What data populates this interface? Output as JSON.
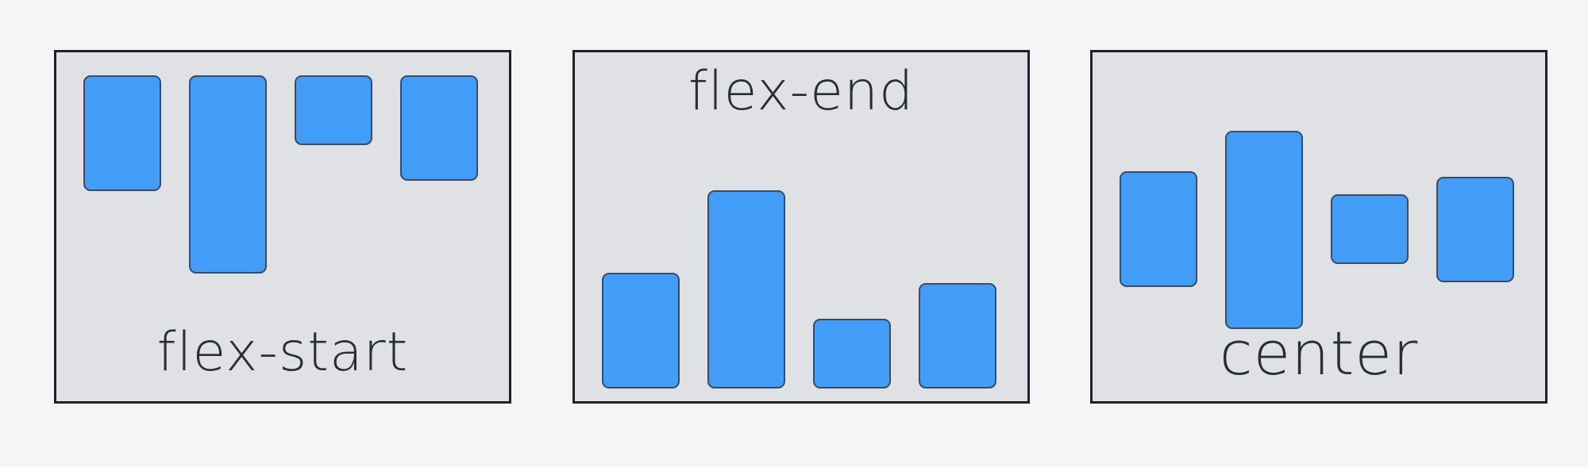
{
  "panels": [
    {
      "label": "flex-start"
    },
    {
      "label": "flex-end"
    },
    {
      "label": "center"
    }
  ],
  "colors": {
    "background": "#f5f5f5",
    "panel": "#dfe1e5",
    "panel_border": "#1f2229",
    "box": "#429df8",
    "box_border": "#3a4c63",
    "text": "#2a2d37"
  }
}
